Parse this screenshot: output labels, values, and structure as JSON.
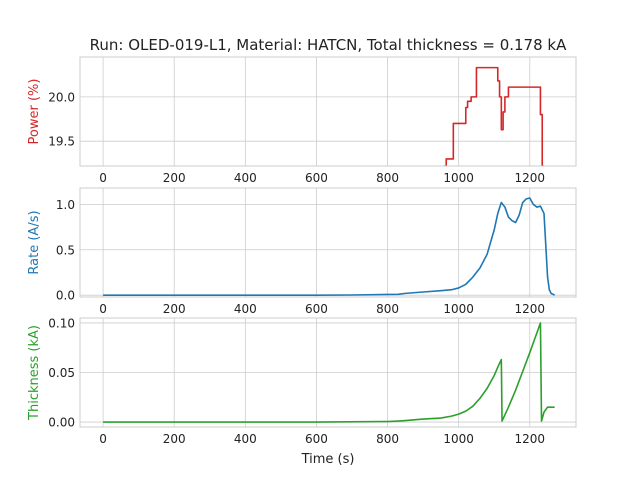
{
  "title": "Run: OLED-019-L1, Material: HATCN, Total thickness = 0.178 kA",
  "xlabel": "Time (s)",
  "chart_data": [
    {
      "type": "line",
      "ylabel": "Power (%)",
      "color": "#d62728",
      "xlim": [
        -65,
        1330
      ],
      "ylim": [
        19.22,
        20.45
      ],
      "x_ticks": [
        0,
        200,
        400,
        600,
        800,
        1000,
        1200
      ],
      "y_ticks": [
        19.5,
        20.0
      ],
      "y_tick_labels": [
        "19.5",
        "20.0"
      ],
      "grid": true,
      "x": [
        960,
        965,
        965,
        985,
        985,
        1005,
        1005,
        1020,
        1020,
        1025,
        1025,
        1035,
        1035,
        1050,
        1050,
        1060,
        1060,
        1110,
        1110,
        1115,
        1115,
        1120,
        1120,
        1125,
        1125,
        1130,
        1130,
        1140,
        1140,
        1230,
        1230,
        1235,
        1235,
        1240
      ],
      "y": [
        19.22,
        19.22,
        19.3,
        19.3,
        19.7,
        19.7,
        19.7,
        19.7,
        19.88,
        19.88,
        19.95,
        19.95,
        20.0,
        20.0,
        20.33,
        20.33,
        20.33,
        20.33,
        20.18,
        20.18,
        20.0,
        20.0,
        19.63,
        19.63,
        19.83,
        19.83,
        20.0,
        20.0,
        20.11,
        20.11,
        19.8,
        19.8,
        19.22,
        19.22
      ]
    },
    {
      "type": "line",
      "ylabel": "Rate (A/s)",
      "color": "#1f77b4",
      "xlim": [
        -65,
        1330
      ],
      "ylim": [
        -0.02,
        1.18
      ],
      "x_ticks": [
        0,
        200,
        400,
        600,
        800,
        1000,
        1200
      ],
      "y_ticks": [
        0.0,
        0.5,
        1.0
      ],
      "y_tick_labels": [
        "0.0",
        "0.5",
        "1.0"
      ],
      "grid": true,
      "x": [
        0,
        200,
        400,
        600,
        700,
        800,
        830,
        850,
        900,
        950,
        980,
        1000,
        1020,
        1040,
        1060,
        1080,
        1100,
        1110,
        1120,
        1130,
        1140,
        1150,
        1160,
        1170,
        1180,
        1190,
        1200,
        1210,
        1220,
        1230,
        1240,
        1245,
        1250,
        1255,
        1260,
        1270
      ],
      "y": [
        0.0,
        0.0,
        0.0,
        0.0,
        0.002,
        0.008,
        0.01,
        0.02,
        0.035,
        0.05,
        0.06,
        0.08,
        0.12,
        0.2,
        0.3,
        0.45,
        0.72,
        0.9,
        1.02,
        0.97,
        0.86,
        0.82,
        0.8,
        0.88,
        1.02,
        1.06,
        1.07,
        1.0,
        0.97,
        0.98,
        0.9,
        0.55,
        0.2,
        0.06,
        0.02,
        0.0
      ]
    },
    {
      "type": "line",
      "ylabel": "Thickness (kA)",
      "color": "#2ca02c",
      "xlim": [
        -65,
        1330
      ],
      "ylim": [
        -0.005,
        0.105
      ],
      "x_ticks": [
        0,
        200,
        400,
        600,
        800,
        1000,
        1200
      ],
      "x_tick_labels": [
        "0",
        "200",
        "400",
        "600",
        "800",
        "1000",
        "1200"
      ],
      "y_ticks": [
        0.0,
        0.05,
        0.1
      ],
      "y_tick_labels": [
        "0.00",
        "0.05",
        "0.10"
      ],
      "grid": true,
      "x": [
        0,
        200,
        400,
        600,
        800,
        830,
        850,
        900,
        950,
        980,
        1000,
        1020,
        1040,
        1060,
        1080,
        1100,
        1112,
        1120,
        1122,
        1140,
        1160,
        1180,
        1200,
        1220,
        1230,
        1233,
        1240,
        1250,
        1260,
        1270
      ],
      "y": [
        0.0,
        0.0,
        0.0,
        0.0,
        0.0005,
        0.001,
        0.0015,
        0.003,
        0.004,
        0.006,
        0.008,
        0.011,
        0.016,
        0.024,
        0.034,
        0.047,
        0.057,
        0.063,
        0.001,
        0.015,
        0.032,
        0.051,
        0.07,
        0.09,
        0.1,
        0.001,
        0.01,
        0.015,
        0.015,
        0.015
      ]
    }
  ]
}
